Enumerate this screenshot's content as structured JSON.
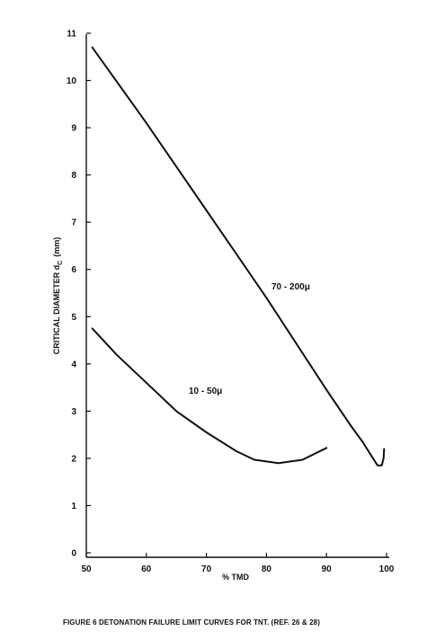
{
  "chart_data": {
    "type": "line",
    "xlabel": "% TMD",
    "ylabel_main": "CRITICAL DIAMETER d",
    "ylabel_sub": "C",
    "ylabel_unit": "(mm)",
    "xlim": [
      50,
      100
    ],
    "ylim": [
      0,
      11
    ],
    "x_ticks": [
      "50",
      "60",
      "70",
      "80",
      "90",
      "100"
    ],
    "y_ticks": [
      "0",
      "1",
      "2",
      "3",
      "4",
      "5",
      "6",
      "7",
      "8",
      "9",
      "10",
      "11"
    ],
    "grid": false,
    "series": [
      {
        "name": "70 - 200μ",
        "points": [
          [
            51,
            10.7
          ],
          [
            60,
            9.1
          ],
          [
            70,
            7.25
          ],
          [
            80,
            5.4
          ],
          [
            90,
            3.45
          ],
          [
            94,
            2.7
          ],
          [
            96,
            2.35
          ],
          [
            97.5,
            2.05
          ],
          [
            98.5,
            1.85
          ],
          [
            99.2,
            1.85
          ],
          [
            99.5,
            2.0
          ],
          [
            99.6,
            2.2
          ]
        ]
      },
      {
        "name": "10 - 50μ",
        "points": [
          [
            51,
            4.75
          ],
          [
            55,
            4.2
          ],
          [
            60,
            3.6
          ],
          [
            65,
            3.0
          ],
          [
            70,
            2.55
          ],
          [
            75,
            2.15
          ],
          [
            78,
            1.97
          ],
          [
            82,
            1.9
          ],
          [
            86,
            1.97
          ],
          [
            90,
            2.22
          ]
        ]
      }
    ]
  },
  "caption": "FIGURE 6  DETONATION FAILURE LIMIT CURVES FOR TNT. (REF. 26 & 28)"
}
